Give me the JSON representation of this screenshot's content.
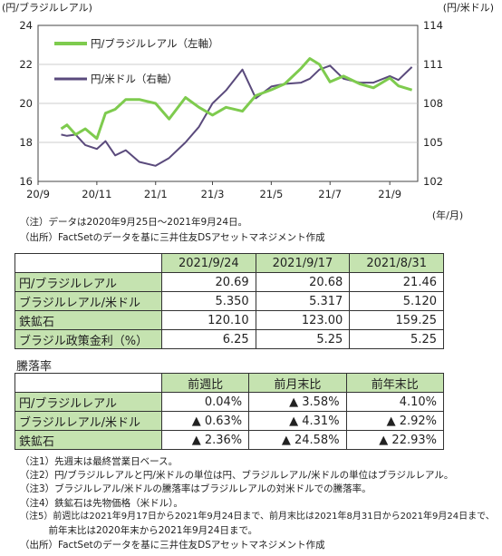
{
  "chart_data": {
    "type": "line",
    "left_axis_label": "(円/ブラジルレアル)",
    "right_axis_label": "(円/米ドル)",
    "x_axis_unit": "(年/月)",
    "x_ticks": [
      "20/9",
      "20/11",
      "21/1",
      "21/3",
      "21/5",
      "21/7",
      "21/9"
    ],
    "y_left_ticks": [
      "24",
      "22",
      "20",
      "18",
      "16"
    ],
    "y_right_ticks": [
      "114",
      "111",
      "108",
      "105",
      "102"
    ],
    "ylim_left": [
      16,
      24
    ],
    "ylim_right": [
      102,
      114
    ],
    "legend_position": "top-left",
    "series": [
      {
        "name": "円/ブラジルレアル（左軸）",
        "axis": "left",
        "color": "#7ecb4e",
        "x": [
          "2020-09-25",
          "2020-10-01",
          "2020-10-10",
          "2020-10-20",
          "2020-11-01",
          "2020-11-10",
          "2020-11-20",
          "2020-12-01",
          "2020-12-15",
          "2021-01-01",
          "2021-01-15",
          "2021-02-01",
          "2021-02-15",
          "2021-03-01",
          "2021-03-15",
          "2021-04-01",
          "2021-04-15",
          "2021-05-01",
          "2021-05-15",
          "2021-06-01",
          "2021-06-10",
          "2021-06-20",
          "2021-07-01",
          "2021-07-15",
          "2021-08-01",
          "2021-08-15",
          "2021-09-01",
          "2021-09-10",
          "2021-09-24"
        ],
        "y": [
          18.7,
          18.9,
          18.4,
          18.7,
          18.2,
          19.5,
          19.7,
          20.2,
          20.2,
          20.0,
          19.2,
          20.3,
          19.8,
          19.4,
          19.8,
          19.6,
          20.4,
          20.7,
          21.0,
          21.8,
          22.3,
          22.0,
          21.1,
          21.4,
          21.0,
          20.8,
          21.3,
          20.9,
          20.69
        ]
      },
      {
        "name": "円/米ドル（右軸）",
        "axis": "right",
        "color": "#5a4a7c",
        "x": [
          "2020-09-25",
          "2020-10-01",
          "2020-10-10",
          "2020-10-20",
          "2020-11-01",
          "2020-11-10",
          "2020-11-20",
          "2020-12-01",
          "2020-12-15",
          "2021-01-01",
          "2021-01-15",
          "2021-02-01",
          "2021-02-15",
          "2021-03-01",
          "2021-03-15",
          "2021-04-01",
          "2021-04-15",
          "2021-05-01",
          "2021-05-15",
          "2021-06-01",
          "2021-06-10",
          "2021-06-20",
          "2021-07-01",
          "2021-07-15",
          "2021-08-01",
          "2021-08-15",
          "2021-09-01",
          "2021-09-10",
          "2021-09-24"
        ],
        "y": [
          105.6,
          105.5,
          105.6,
          104.8,
          104.5,
          105.1,
          104.0,
          104.4,
          103.5,
          103.2,
          103.8,
          105.0,
          106.2,
          108.0,
          109.0,
          110.6,
          108.4,
          109.3,
          109.5,
          109.6,
          109.9,
          110.6,
          110.9,
          109.9,
          109.6,
          109.6,
          110.1,
          109.8,
          110.8
        ]
      }
    ]
  },
  "notes_top": [
    "（注）データは2020年9月25日～2021年9月24日。",
    "（出所）FactSetのデータを基に三井住友DSアセットマネジメント作成"
  ],
  "table1": {
    "headers": [
      "",
      "2021/9/24",
      "2021/9/17",
      "2021/8/31"
    ],
    "rows": [
      {
        "label": "円/ブラジルレアル",
        "values": [
          "20.69",
          "20.68",
          "21.46"
        ]
      },
      {
        "label": "ブラジルレアル/米ドル",
        "values": [
          "5.350",
          "5.317",
          "5.120"
        ]
      },
      {
        "label": "鉄鉱石",
        "values": [
          "120.10",
          "123.00",
          "159.25"
        ]
      },
      {
        "label": "ブラジル政策金利（%）",
        "values": [
          "6.25",
          "5.25",
          "5.25"
        ]
      }
    ]
  },
  "table2": {
    "title": "騰落率",
    "headers": [
      "",
      "前週比",
      "前月末比",
      "前年末比"
    ],
    "rows": [
      {
        "label": "円/ブラジルレアル",
        "values": [
          "0.04%",
          "▲ 3.58%",
          "4.10%"
        ]
      },
      {
        "label": "ブラジルレアル/米ドル",
        "values": [
          "▲ 0.63%",
          "▲ 4.31%",
          "▲ 2.92%"
        ]
      },
      {
        "label": "鉄鉱石",
        "values": [
          "▲ 2.36%",
          "▲ 24.58%",
          "▲ 22.93%"
        ]
      }
    ]
  },
  "notes_bottom": [
    "（注1）先週末は最終営業日ベース。",
    "（注2）円/ブラジルレアルと円/米ドルの単位は円、ブラジルレアル/米ドルの単位はブラジルレアル。",
    "（注3）ブラジルレアル/米ドルの騰落率はブラジルレアルの対米ドルでの騰落率。",
    "（注4）鉄鉱石は先物価格（米ドル）。",
    "（注5）前週比は2021年9月17日から2021年9月24日まで、前月末比は2021年8月31日から2021年9月24日まで、",
    "　　　前年末比は2020年末から2021年9月24日まで。",
    "（出所）FactSetのデータを基に三井住友DSアセットマネジメント作成"
  ]
}
